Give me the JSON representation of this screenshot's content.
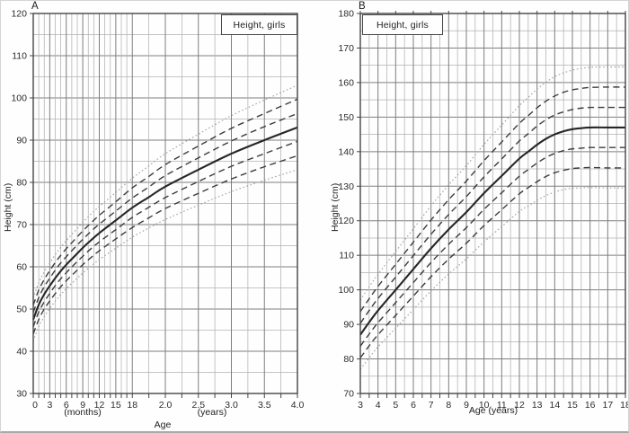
{
  "figure": {
    "panel_a": {
      "letter": "A",
      "box_label": "Height, girls",
      "y_axis_title": "Height (cm)",
      "x_unit_months": "(months)",
      "x_unit_years": "(years)",
      "x_axis_title": "Age"
    },
    "panel_b": {
      "letter": "B",
      "box_label": "Height, girls",
      "y_axis_title": "Height (cm)",
      "x_axis_title": "Age (years)"
    }
  },
  "chart_data": [
    {
      "type": "line",
      "panel": "A",
      "title": "Height, girls",
      "xlabel": "Age",
      "x_unit_labels": [
        "(months)",
        "(years)"
      ],
      "ylabel": "Height (cm)",
      "ylim": [
        30,
        120
      ],
      "y_major_step": 10,
      "y_minor_step": 5,
      "x_range_months": [
        0,
        48
      ],
      "x_minor_step_months_0_18": 1,
      "x_minor_step_months_18_48": 3,
      "x_month_tick_positions": [
        0,
        3,
        6,
        9,
        12,
        15,
        18
      ],
      "x_month_tick_labels": [
        "0",
        "3",
        "6",
        "9",
        "12",
        "15",
        "18"
      ],
      "x_year_tick_positions_months": [
        24,
        30,
        36,
        42,
        48
      ],
      "x_year_tick_labels": [
        "2.0",
        "2.5",
        "3.0",
        "3.5",
        "4.0"
      ],
      "grid": true,
      "ages_months": [
        0,
        1,
        2,
        3,
        4.5,
        6,
        7.5,
        9,
        10.5,
        12,
        15,
        18,
        21,
        24,
        30,
        36,
        42,
        48
      ],
      "series": [
        {
          "style": "dotted",
          "values": [
            42.4,
            45.8,
            48.2,
            50.1,
            52.7,
            54.8,
            56.7,
            58.5,
            60.2,
            61.7,
            64.4,
            67.0,
            69.2,
            71.2,
            74.6,
            77.8,
            80.5,
            83.0
          ]
        },
        {
          "style": "dashed",
          "values": [
            44.1,
            47.5,
            50.0,
            51.9,
            54.5,
            56.7,
            58.6,
            60.5,
            62.2,
            63.8,
            66.6,
            69.3,
            71.6,
            73.8,
            77.4,
            80.8,
            83.7,
            86.3
          ]
        },
        {
          "style": "dashed",
          "values": [
            45.8,
            49.3,
            51.7,
            53.7,
            56.4,
            58.6,
            60.6,
            62.5,
            64.3,
            65.9,
            68.8,
            71.7,
            74.1,
            76.4,
            80.2,
            83.8,
            86.8,
            89.7
          ]
        },
        {
          "style": "solid",
          "values": [
            47.5,
            51.0,
            53.5,
            55.5,
            58.2,
            60.5,
            62.5,
            64.5,
            66.3,
            68.0,
            71.0,
            74.0,
            76.5,
            79.0,
            83.0,
            86.8,
            90.0,
            93.0
          ]
        },
        {
          "style": "dashed",
          "values": [
            49.2,
            52.7,
            55.3,
            57.3,
            60.1,
            62.4,
            64.5,
            66.5,
            68.4,
            70.1,
            73.2,
            76.3,
            78.9,
            81.6,
            85.8,
            89.8,
            93.2,
            96.3
          ]
        },
        {
          "style": "dashed",
          "values": [
            50.9,
            54.5,
            57.0,
            59.1,
            61.9,
            64.3,
            66.4,
            68.5,
            70.4,
            72.2,
            75.4,
            78.7,
            81.4,
            84.2,
            88.6,
            92.8,
            96.3,
            99.7
          ]
        },
        {
          "style": "dotted",
          "values": [
            52.6,
            56.2,
            58.8,
            60.9,
            63.8,
            66.2,
            68.4,
            70.5,
            72.5,
            74.3,
            77.6,
            81.0,
            83.9,
            86.8,
            91.4,
            95.8,
            99.5,
            103.0
          ]
        }
      ]
    },
    {
      "type": "line",
      "panel": "B",
      "title": "Height, girls",
      "xlabel": "Age (years)",
      "ylabel": "Height (cm)",
      "ylim": [
        70,
        180
      ],
      "y_major_step": 10,
      "y_minor_step": 5,
      "xlim": [
        3,
        18
      ],
      "x_major_step": 1,
      "x_minor_step": 0.5,
      "x_tick_labels": [
        "3",
        "4",
        "5",
        "6",
        "7",
        "8",
        "9",
        "10",
        "11",
        "12",
        "13",
        "14",
        "15",
        "16",
        "17",
        "18"
      ],
      "grid": true,
      "ages_years": [
        3,
        3.5,
        4,
        5,
        6,
        7,
        8,
        9,
        10,
        11,
        12,
        12.5,
        13,
        13.5,
        14,
        14.5,
        15,
        15.5,
        16,
        17,
        18
      ],
      "series": [
        {
          "style": "dotted",
          "values": [
            77.0,
            80.3,
            83.5,
            88.9,
            94.3,
            99.7,
            104.6,
            109.0,
            113.9,
            118.3,
            122.7,
            124.3,
            125.9,
            127.3,
            128.3,
            129.0,
            129.4,
            129.5,
            129.6,
            129.5,
            129.5
          ]
        },
        {
          "style": "dashed",
          "values": [
            80.3,
            83.8,
            87.0,
            92.6,
            98.2,
            103.8,
            108.9,
            113.5,
            118.6,
            123.2,
            127.8,
            129.6,
            131.3,
            132.8,
            133.9,
            134.6,
            135.1,
            135.3,
            135.4,
            135.3,
            135.3
          ]
        },
        {
          "style": "dashed",
          "values": [
            83.7,
            87.2,
            90.5,
            96.3,
            102.1,
            107.9,
            113.2,
            118.0,
            123.3,
            128.1,
            132.9,
            134.8,
            136.7,
            138.3,
            139.5,
            140.3,
            140.8,
            141.0,
            141.2,
            141.2,
            141.2
          ]
        },
        {
          "style": "solid",
          "values": [
            87.0,
            90.6,
            94.0,
            100.0,
            106.0,
            112.0,
            117.5,
            122.5,
            128.0,
            133.0,
            138.0,
            140.0,
            142.0,
            143.7,
            145.0,
            145.9,
            146.5,
            146.8,
            147.0,
            147.0,
            147.0
          ]
        },
        {
          "style": "dashed",
          "values": [
            90.3,
            94.0,
            97.5,
            103.7,
            109.9,
            116.1,
            121.8,
            127.0,
            132.7,
            137.9,
            143.1,
            145.2,
            147.4,
            149.2,
            150.6,
            151.5,
            152.2,
            152.6,
            152.8,
            152.8,
            152.8
          ]
        },
        {
          "style": "dashed",
          "values": [
            93.7,
            97.4,
            101.0,
            107.4,
            113.8,
            120.2,
            126.1,
            131.5,
            137.4,
            142.8,
            148.2,
            150.4,
            152.7,
            154.6,
            156.1,
            157.2,
            157.9,
            158.3,
            158.6,
            158.7,
            158.7
          ]
        },
        {
          "style": "dotted",
          "values": [
            97.0,
            100.9,
            104.5,
            111.1,
            117.7,
            124.3,
            130.4,
            136.0,
            142.1,
            147.7,
            153.3,
            155.7,
            158.1,
            160.1,
            161.7,
            162.8,
            163.6,
            164.1,
            164.4,
            164.5,
            164.5
          ]
        }
      ]
    }
  ]
}
